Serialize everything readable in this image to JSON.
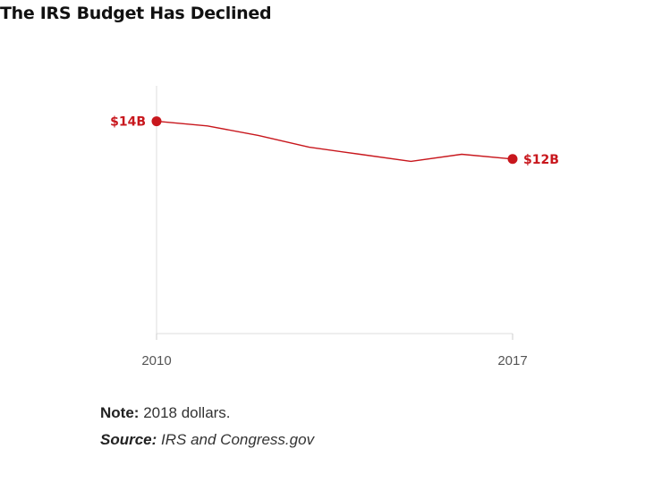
{
  "chart_data": {
    "type": "line",
    "title": "The IRS Budget Has Declined",
    "xlabel": "",
    "ylabel": "",
    "x": [
      2010,
      2011,
      2012,
      2013,
      2014,
      2015,
      2016,
      2017
    ],
    "series": [
      {
        "values": [
          14.0,
          13.8,
          13.4,
          12.9,
          12.6,
          12.3,
          12.6,
          12.4
        ],
        "color": "#c8171d"
      }
    ],
    "x_ticks": [
      "2010",
      "2017"
    ],
    "data_labels": [
      {
        "x": 2010,
        "text": "$14B"
      },
      {
        "x": 2017,
        "text": "$12B"
      }
    ],
    "ylim": [
      5,
      15.5
    ],
    "grid": false,
    "legend": "none"
  },
  "footnotes": {
    "note_key": "Note:",
    "note_text": "2018 dollars.",
    "source_key": "Source:",
    "source_text": "IRS and Congress.gov"
  }
}
